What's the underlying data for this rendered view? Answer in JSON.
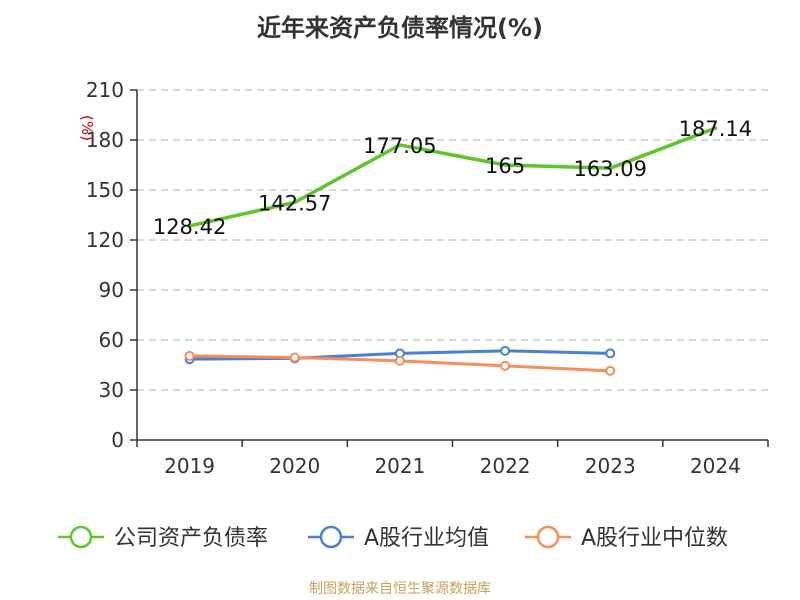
{
  "chart_data": {
    "type": "line",
    "title": "近年来资产负债率情况(%)",
    "ylabel": "(%)",
    "categories": [
      "2019",
      "2020",
      "2021",
      "2022",
      "2023",
      "2024"
    ],
    "ylim": [
      0,
      210
    ],
    "yticks": [
      0,
      30,
      60,
      90,
      120,
      150,
      180,
      210
    ],
    "grid": true,
    "legend_position": "bottom",
    "series": [
      {
        "name": "公司资产负债率",
        "color": "#5ec52b",
        "values": [
          128.42,
          142.57,
          177.05,
          165,
          163.09,
          187.14
        ],
        "labels": [
          "128.42",
          "142.57",
          "177.05",
          "165",
          "163.09",
          "187.14"
        ],
        "show_markers": false
      },
      {
        "name": "A股行业均值",
        "color": "#4a7fd6",
        "values": [
          48.5,
          49,
          52,
          53.5,
          52,
          null
        ],
        "show_markers": true
      },
      {
        "name": "A股行业中位数",
        "color": "#f78d5b",
        "values": [
          50.5,
          49.5,
          47.5,
          44.5,
          41.5,
          null
        ],
        "show_markers": true
      }
    ],
    "source_note": "制图数据来自恒生聚源数据库"
  }
}
